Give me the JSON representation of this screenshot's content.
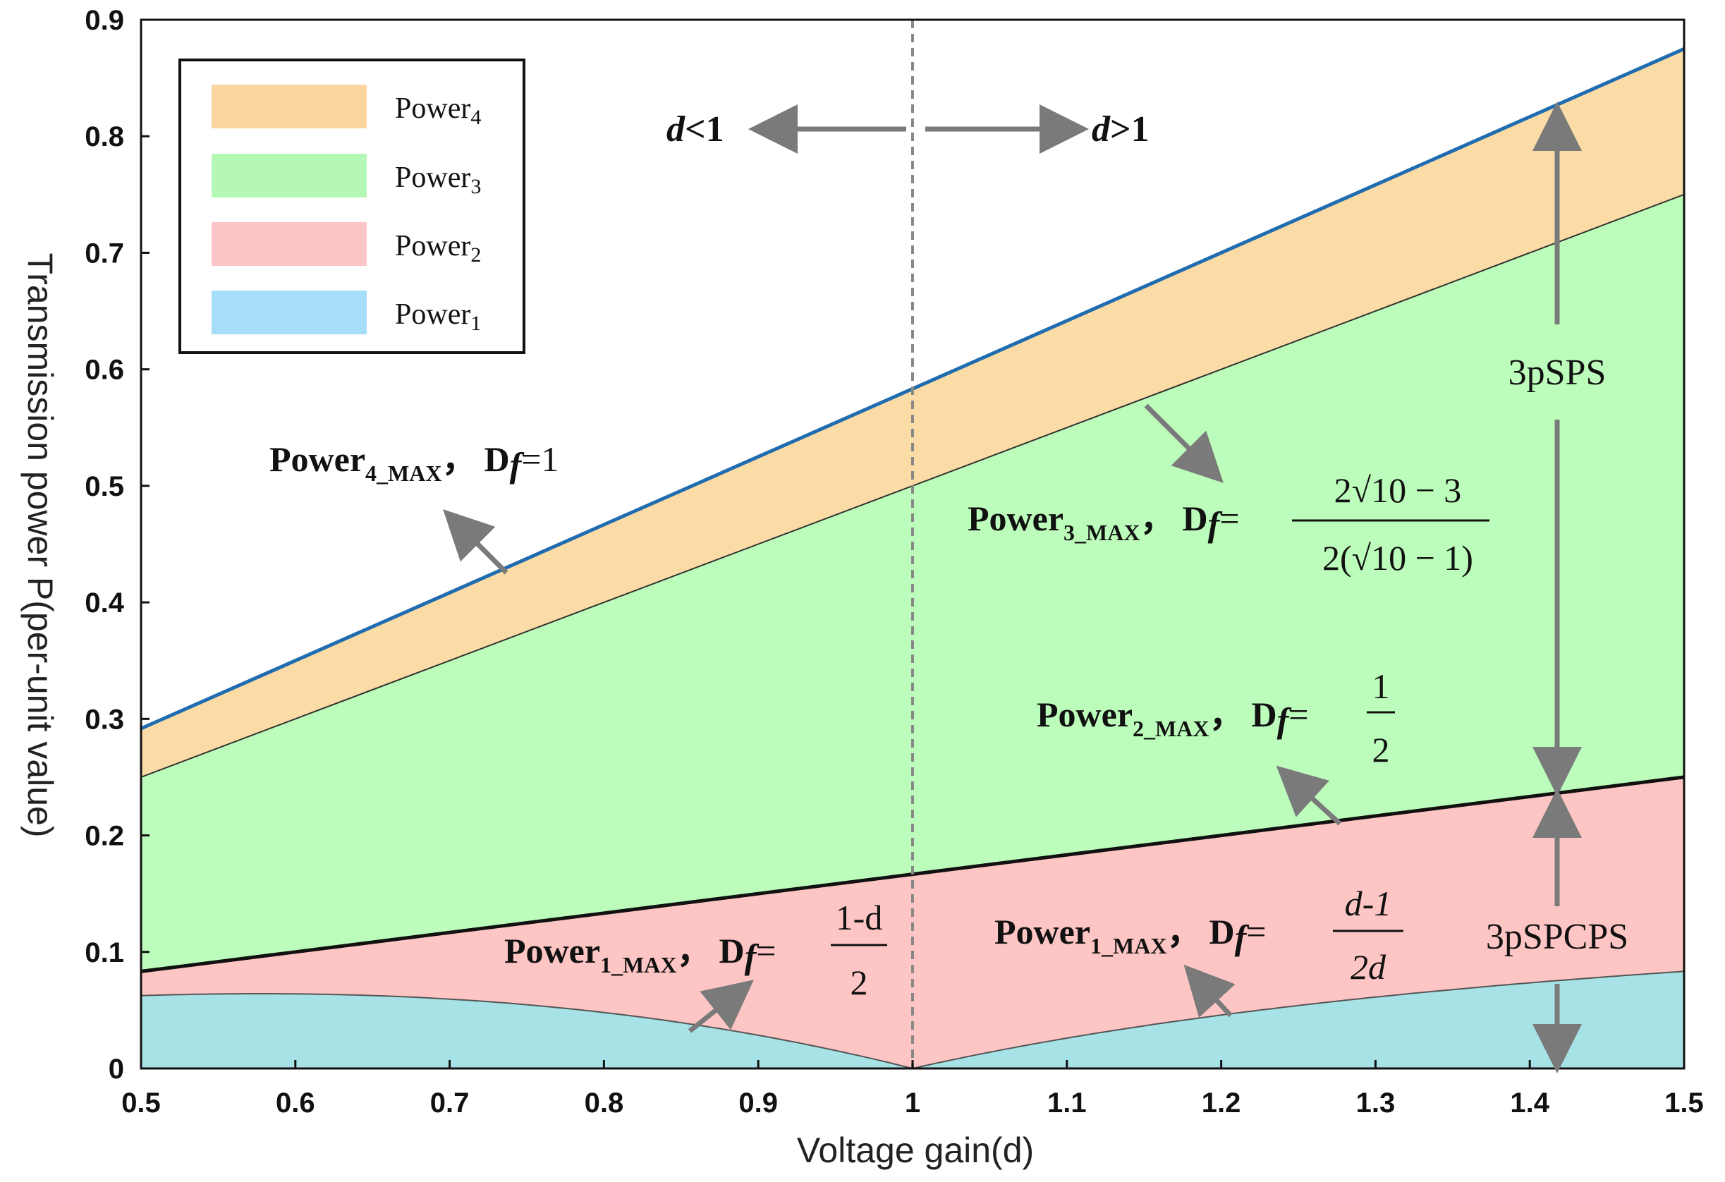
{
  "chart_data": {
    "type": "area",
    "xlabel": "Voltage gain(d)",
    "ylabel": "Transmission power P(per-unit value)",
    "xlim": [
      0.5,
      1.5
    ],
    "ylim": [
      0,
      0.9
    ],
    "xticks": [
      "0.5",
      "0.6",
      "0.7",
      "0.8",
      "0.9",
      "1",
      "1.1",
      "1.2",
      "1.3",
      "1.4",
      "1.5"
    ],
    "yticks": [
      "0",
      "0.1",
      "0.2",
      "0.3",
      "0.4",
      "0.5",
      "0.6",
      "0.7",
      "0.8",
      "0.9"
    ],
    "grid": false,
    "legend_position": "top-left",
    "x": [
      0.5,
      0.6,
      0.7,
      0.8,
      0.9,
      1.0,
      1.1,
      1.2,
      1.3,
      1.4,
      1.5
    ],
    "series": [
      {
        "name": "Power",
        "sub": "1",
        "color": "#a7e2e6",
        "values": [
          0.0417,
          0.048,
          0.049,
          0.045,
          0.031,
          0.0,
          0.026,
          0.045,
          0.06,
          0.069,
          0.075
        ]
      },
      {
        "name": "Power",
        "sub": "2",
        "color": "#fdc6c4",
        "values": [
          0.0833,
          0.1,
          0.1167,
          0.1333,
          0.15,
          0.1667,
          0.1833,
          0.2,
          0.2167,
          0.2333,
          0.25
        ]
      },
      {
        "name": "Power",
        "sub": "3",
        "color": "#bcfdbb",
        "values": [
          0.25,
          0.3,
          0.35,
          0.4,
          0.45,
          0.5,
          0.55,
          0.6,
          0.65,
          0.7,
          0.75
        ]
      },
      {
        "name": "Power",
        "sub": "4",
        "color": "#fcdca6",
        "values": [
          0.2917,
          0.35,
          0.4083,
          0.4667,
          0.525,
          0.5833,
          0.6417,
          0.7,
          0.7583,
          0.8167,
          0.875
        ]
      }
    ],
    "legend_swatch_colors": {
      "p4": "#fcd6a0",
      "p3": "#b5f8b6",
      "p2": "#fcc6c8",
      "p1": "#a6def9"
    },
    "top_line_color": "#1f6cb0",
    "vline_x": 1.0,
    "region_labels": {
      "left": "<1",
      "right": ">1",
      "var": "d"
    },
    "bracket_x": 1.414,
    "brackets": [
      {
        "label": "3pSPS",
        "from": 0.2357,
        "to": 0.8249
      },
      {
        "label": "3pSPCPS",
        "from": 0.0,
        "to": 0.2357
      }
    ],
    "annotations": {
      "p4": {
        "word": "Power",
        "sub": "4_MAX",
        "sep": "，",
        "D": "D",
        "f": "f",
        "eq": "=1"
      },
      "p3": {
        "word": "Power",
        "sub": "3_MAX",
        "sep": "，",
        "D": "D",
        "f": "f",
        "eq": "=",
        "num": "2√10 − 3",
        "den": "2(√10 − 1)"
      },
      "p2": {
        "word": "Power",
        "sub": "2_MAX",
        "sep": "，",
        "D": "D",
        "f": "f",
        "eq": "=",
        "num": "1",
        "den": "2"
      },
      "p1a": {
        "word": "Power",
        "sub": "1_MAX",
        "sep": "，",
        "D": "D",
        "f": "f",
        "eq": "=",
        "num": "1-d",
        "den": "2"
      },
      "p1b": {
        "word": "Power",
        "sub": "1_MAX",
        "sep": "，",
        "D": "D",
        "f": "f",
        "eq": "=",
        "num": "d-1",
        "den": "2d"
      }
    }
  }
}
